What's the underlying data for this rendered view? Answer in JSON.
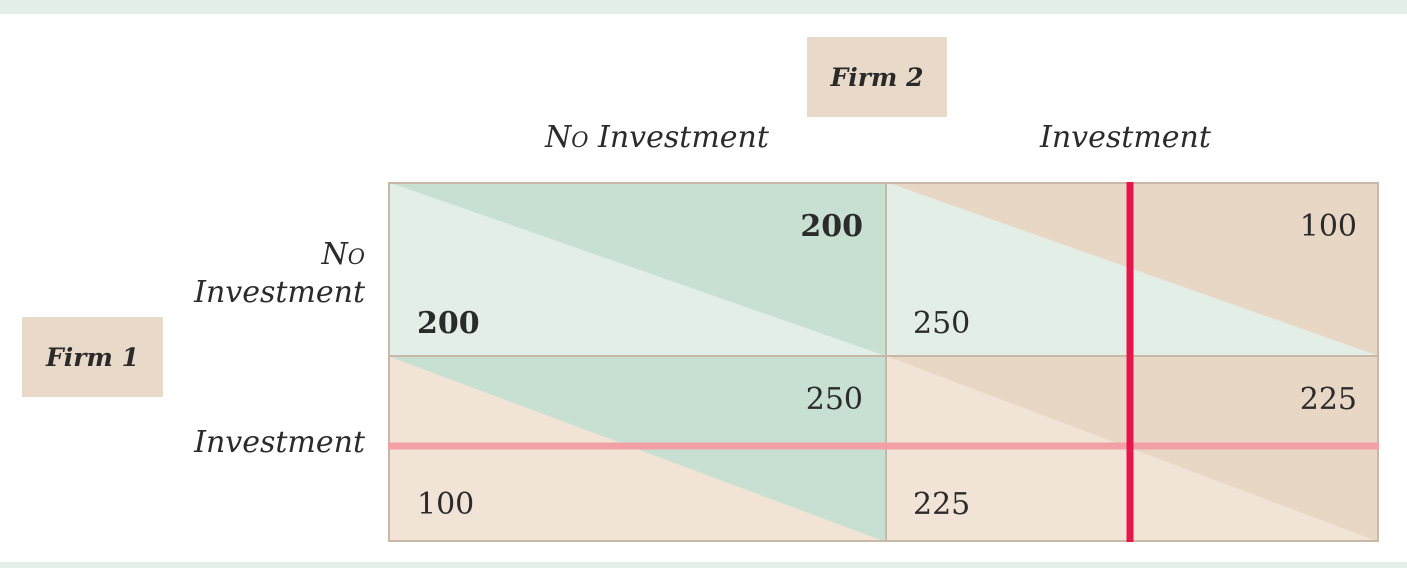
{
  "player_2": {
    "label": "Firm 2"
  },
  "player_1": {
    "label": "Firm 1"
  },
  "columns": [
    {
      "first": "No",
      "rest": " Investment"
    },
    {
      "first": "",
      "rest": "Investment"
    }
  ],
  "rows": [
    {
      "line1": "No",
      "line2": "Investment"
    },
    {
      "line1": "Investment",
      "line2": ""
    }
  ],
  "cells": [
    [
      {
        "firm2": "200",
        "firm1": "200",
        "bold": true
      },
      {
        "firm2": "100",
        "firm1": "250",
        "bold": false
      }
    ],
    [
      {
        "firm2": "250",
        "firm1": "100",
        "bold": false
      },
      {
        "firm2": "225",
        "firm1": "225",
        "bold": false
      }
    ]
  ],
  "colors": {
    "cell_light_green": "#e2eee6",
    "cell_dark_green": "#c8e0d2",
    "cell_light_tan": "#f1e4d7",
    "cell_dark_tan": "#e8d7c5",
    "firm1_best_response_line": "#f2a0a6",
    "firm2_best_response_line": "#e8154d",
    "grid_border": "#c8b8a8"
  }
}
